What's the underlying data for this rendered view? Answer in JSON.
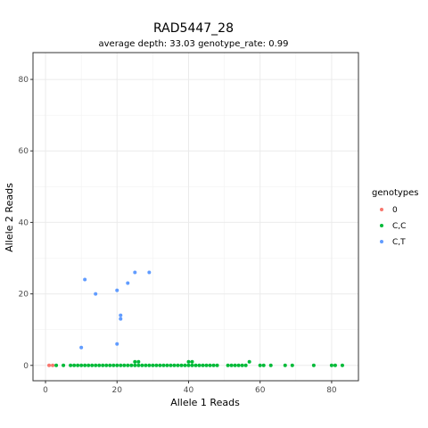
{
  "chart_data": {
    "type": "scatter",
    "title": "RAD5447_28",
    "subtitle": "average depth:  33.03  genotype_rate:  0.99",
    "xlabel": "Allele 1 Reads",
    "ylabel": "Allele 2 Reads",
    "xlim": [
      -3.5,
      87.5
    ],
    "ylim": [
      -4.3,
      87.5
    ],
    "xticks": [
      0,
      20,
      40,
      60,
      80
    ],
    "yticks": [
      0,
      20,
      40,
      60,
      80
    ],
    "grid": true,
    "legend": {
      "title": "genotypes",
      "placement": "right"
    },
    "series": [
      {
        "name": "0",
        "color": "#F8766D",
        "points": [
          [
            1,
            0
          ],
          [
            2,
            0
          ]
        ]
      },
      {
        "name": "C,C",
        "color": "#00BA38",
        "points": [
          [
            3,
            0
          ],
          [
            5,
            0
          ],
          [
            7,
            0
          ],
          [
            8,
            0
          ],
          [
            9,
            0
          ],
          [
            10,
            0
          ],
          [
            11,
            0
          ],
          [
            12,
            0
          ],
          [
            13,
            0
          ],
          [
            14,
            0
          ],
          [
            15,
            0
          ],
          [
            16,
            0
          ],
          [
            17,
            0
          ],
          [
            18,
            0
          ],
          [
            19,
            0
          ],
          [
            20,
            0
          ],
          [
            21,
            0
          ],
          [
            22,
            0
          ],
          [
            23,
            0
          ],
          [
            24,
            0
          ],
          [
            25,
            0
          ],
          [
            25,
            1
          ],
          [
            26,
            0
          ],
          [
            26,
            1
          ],
          [
            27,
            0
          ],
          [
            28,
            0
          ],
          [
            29,
            0
          ],
          [
            30,
            0
          ],
          [
            31,
            0
          ],
          [
            32,
            0
          ],
          [
            33,
            0
          ],
          [
            34,
            0
          ],
          [
            35,
            0
          ],
          [
            36,
            0
          ],
          [
            37,
            0
          ],
          [
            38,
            0
          ],
          [
            39,
            0
          ],
          [
            40,
            0
          ],
          [
            40,
            1
          ],
          [
            41,
            0
          ],
          [
            41,
            1
          ],
          [
            42,
            0
          ],
          [
            43,
            0
          ],
          [
            44,
            0
          ],
          [
            45,
            0
          ],
          [
            46,
            0
          ],
          [
            47,
            0
          ],
          [
            48,
            0
          ],
          [
            51,
            0
          ],
          [
            52,
            0
          ],
          [
            53,
            0
          ],
          [
            54,
            0
          ],
          [
            55,
            0
          ],
          [
            56,
            0
          ],
          [
            57,
            1
          ],
          [
            60,
            0
          ],
          [
            61,
            0
          ],
          [
            63,
            0
          ],
          [
            67,
            0
          ],
          [
            69,
            0
          ],
          [
            75,
            0
          ],
          [
            80,
            0
          ],
          [
            81,
            0
          ],
          [
            83,
            0
          ]
        ]
      },
      {
        "name": "C,T",
        "color": "#619CFF",
        "points": [
          [
            10,
            5
          ],
          [
            11,
            24
          ],
          [
            14,
            20
          ],
          [
            20,
            6
          ],
          [
            20,
            21
          ],
          [
            21,
            13
          ],
          [
            21,
            14
          ],
          [
            23,
            23
          ],
          [
            25,
            26
          ],
          [
            29,
            26
          ]
        ]
      }
    ]
  }
}
